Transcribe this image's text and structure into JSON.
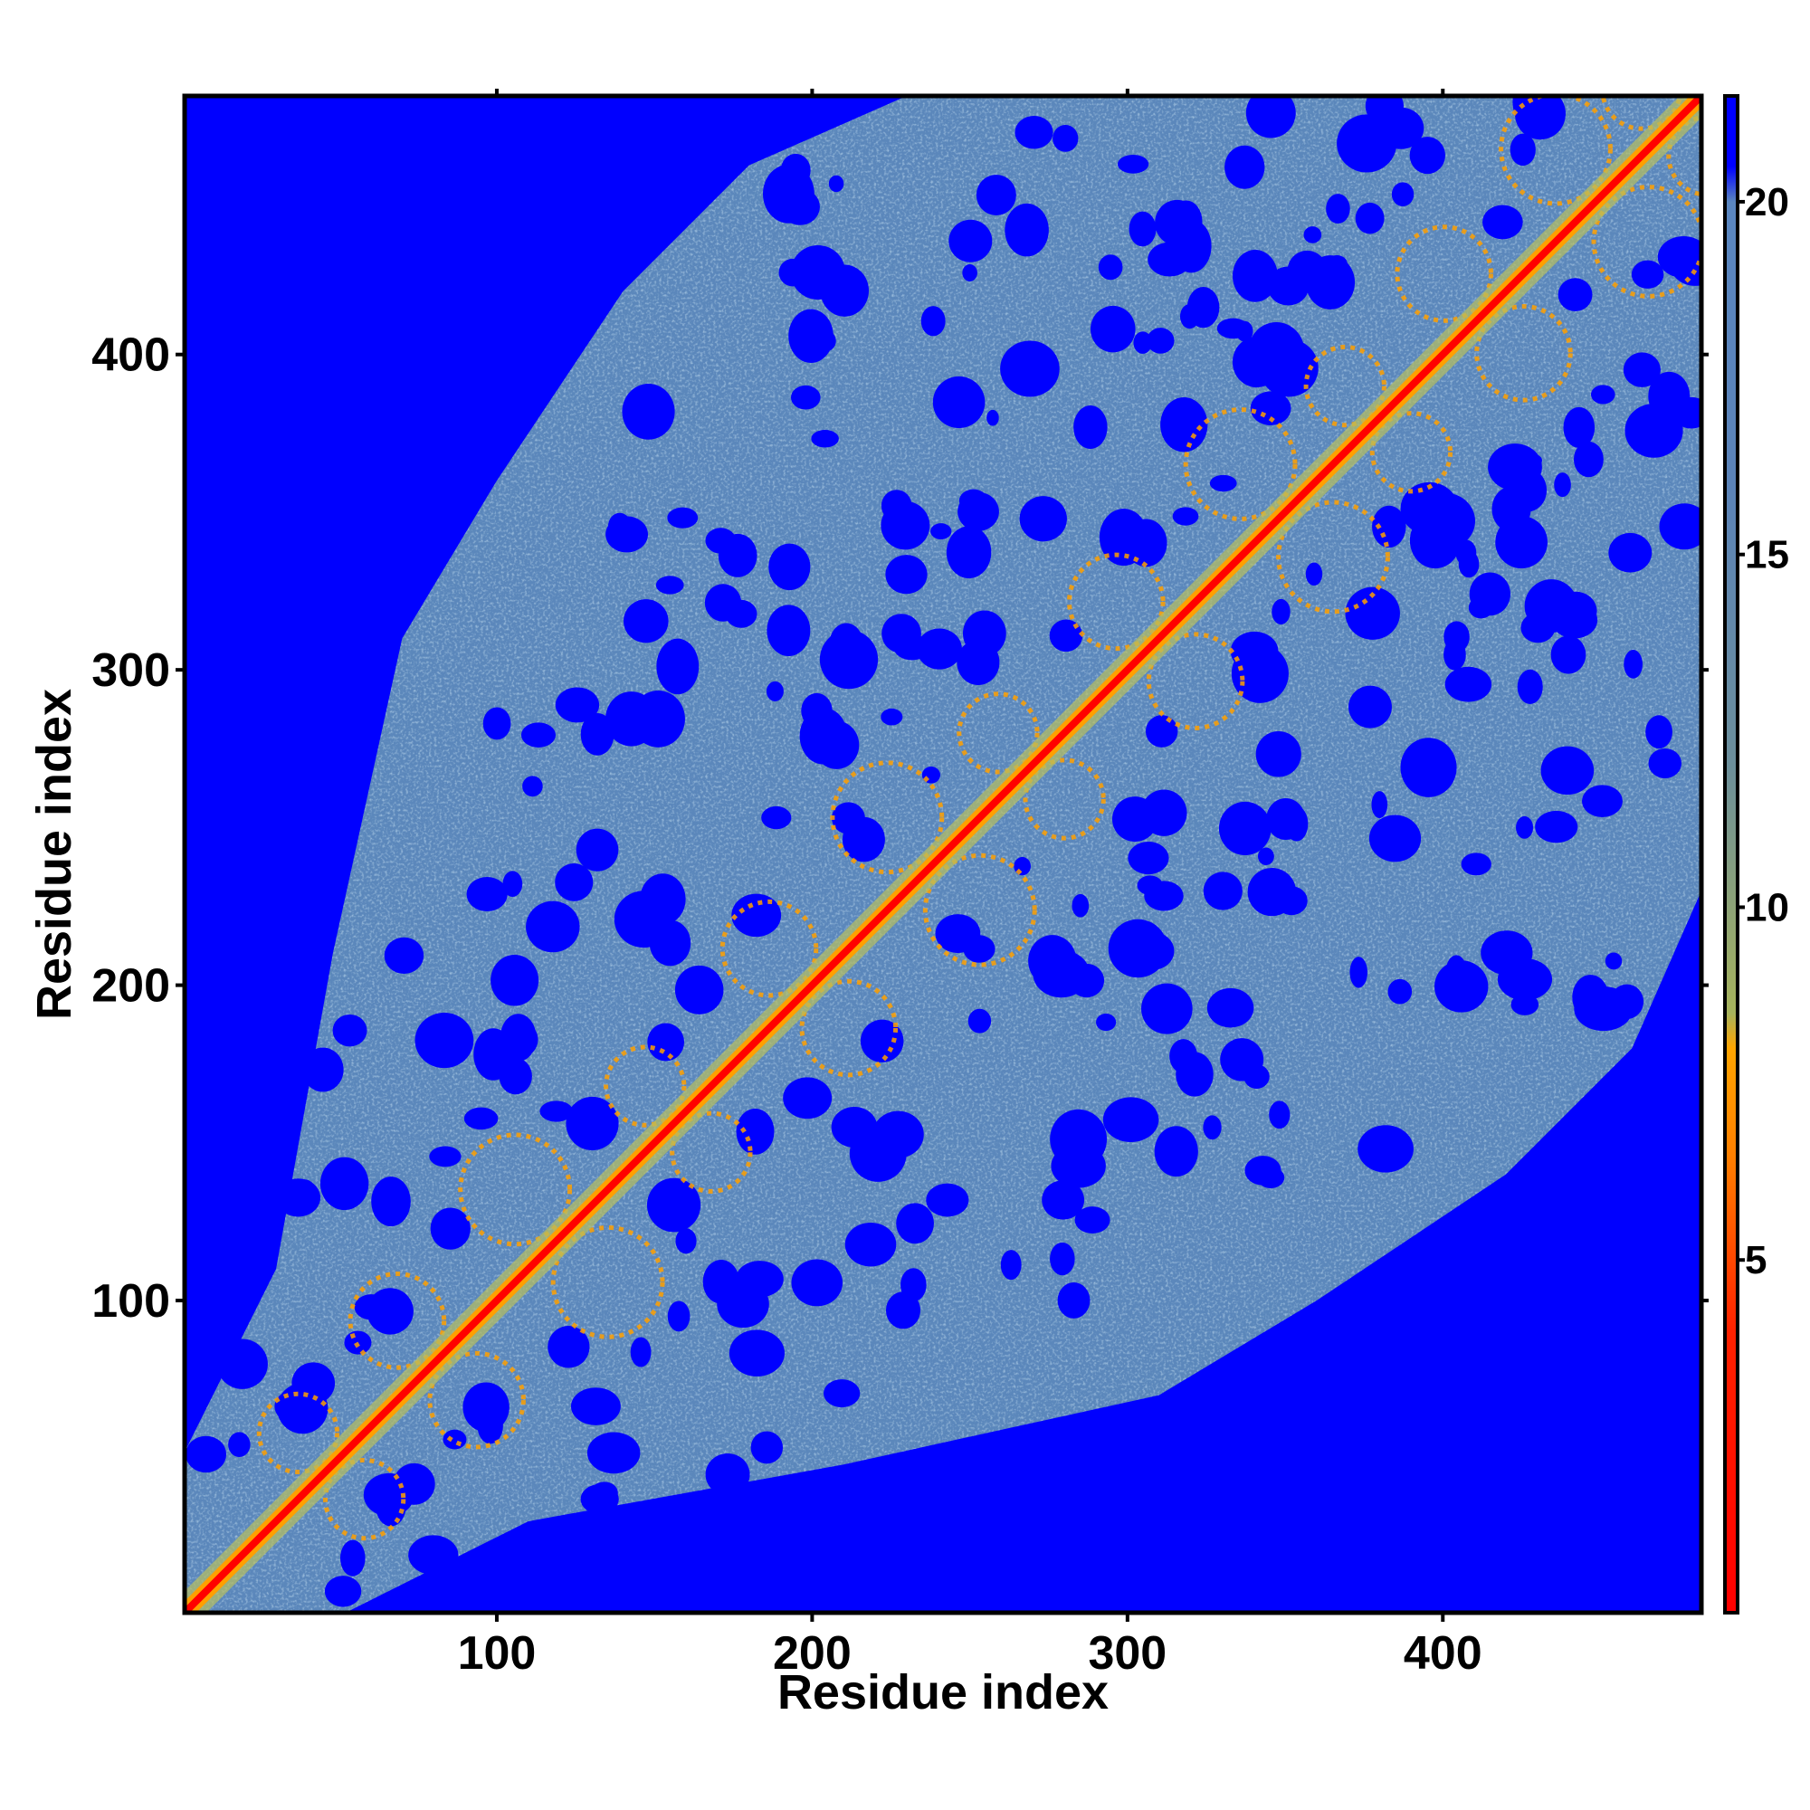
{
  "chart_data": {
    "type": "heatmap",
    "title": "",
    "xlabel": "Residue index",
    "ylabel": "Residue index",
    "xlim": [
      1,
      482
    ],
    "ylim": [
      1,
      482
    ],
    "x_ticks": [
      100,
      200,
      300,
      400
    ],
    "y_ticks": [
      100,
      200,
      300,
      400
    ],
    "x_tick_labels": [
      "100",
      "200",
      "300",
      "400"
    ],
    "y_tick_labels": [
      "100",
      "200",
      "300",
      "400"
    ],
    "colorbar": {
      "range": [
        0,
        21.5
      ],
      "ticks": [
        5,
        10,
        15,
        20
      ],
      "tick_labels": [
        "5",
        "10",
        "15",
        "20"
      ],
      "stops": [
        {
          "value": 0,
          "color": "#ff0000"
        },
        {
          "value": 4,
          "color": "#ff2200"
        },
        {
          "value": 6.5,
          "color": "#ff8000"
        },
        {
          "value": 8,
          "color": "#ffa500"
        },
        {
          "value": 8.5,
          "color": "#a7b35c"
        },
        {
          "value": 12,
          "color": "#6c8f9b"
        },
        {
          "value": 16,
          "color": "#5b83b8"
        },
        {
          "value": 20,
          "color": "#5a86c0"
        },
        {
          "value": 20.5,
          "color": "#0000ff"
        },
        {
          "value": 21.5,
          "color": "#0000ff"
        }
      ]
    },
    "grid": false,
    "description_values": {
      "diagonal_distance": 0,
      "contact_band_color": "#ffa500",
      "mid_range_color": "#5b87bb",
      "far_color": "#0000ff"
    }
  },
  "colors": {
    "background": "#ffffff",
    "axis": "#000000",
    "far": "#0000ff",
    "mid": "#5b87bb",
    "near": "#ffa000",
    "diagonal": "#ff0000"
  }
}
